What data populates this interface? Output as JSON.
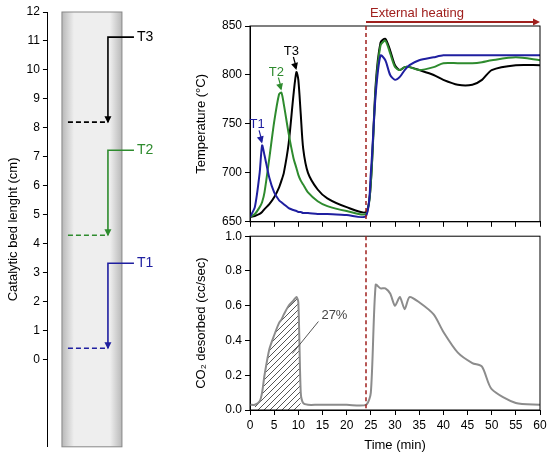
{
  "chart_data": [
    {
      "type": "reference_lines",
      "y_label": "Catalytic bed lenght (cm)",
      "ylim": [
        -3,
        12
      ],
      "yticks": [
        0,
        1,
        2,
        3,
        4,
        5,
        6,
        7,
        8,
        9,
        10,
        11,
        12
      ],
      "tick_labels": "y",
      "grid": false,
      "lines": [
        {
          "label": "T1",
          "value": 0.4,
          "color": "#1f1fa0"
        },
        {
          "label": "T2",
          "value": 4.3,
          "color": "#2e8b2e"
        },
        {
          "label": "T3",
          "value": 8.2,
          "color": "#000000"
        }
      ]
    },
    {
      "type": "line",
      "y_label": "Temperature (°C)",
      "x": [
        0,
        1,
        2,
        2.5,
        3,
        4,
        5,
        6,
        6.5,
        7,
        8,
        9,
        9.6,
        10,
        10.5,
        11,
        12,
        14,
        16,
        20,
        24,
        25,
        26,
        27,
        28,
        29,
        30,
        31,
        32,
        33,
        35,
        38,
        40,
        43,
        46,
        48,
        50,
        55,
        60
      ],
      "series": [
        {
          "name": "T1",
          "color": "#1f1fa0",
          "values": [
            655,
            665,
            700,
            728,
            718,
            695,
            680,
            672,
            670,
            668,
            664,
            662,
            661,
            660,
            660,
            659,
            659,
            658,
            658,
            657,
            656,
            700,
            780,
            820,
            815,
            800,
            795,
            798,
            805,
            810,
            815,
            818,
            820,
            820,
            820,
            820,
            820,
            820,
            820
          ]
        },
        {
          "name": "T2",
          "color": "#2e8b2e",
          "values": [
            655,
            658,
            665,
            670,
            680,
            715,
            752,
            780,
            782,
            770,
            740,
            715,
            705,
            698,
            692,
            688,
            680,
            671,
            666,
            661,
            658,
            690,
            785,
            830,
            835,
            822,
            808,
            805,
            808,
            808,
            805,
            808,
            812,
            812,
            812,
            813,
            815,
            818,
            815
          ]
        },
        {
          "name": "T3",
          "color": "#000000",
          "values": [
            655,
            656,
            658,
            660,
            663,
            668,
            675,
            685,
            692,
            700,
            730,
            780,
            803,
            795,
            760,
            725,
            700,
            683,
            674,
            665,
            660,
            690,
            790,
            833,
            837,
            825,
            810,
            805,
            808,
            808,
            805,
            800,
            795,
            790,
            790,
            795,
            805,
            810,
            810
          ]
        }
      ],
      "xlim": [
        0,
        60
      ],
      "xticks": [
        0,
        5,
        10,
        15,
        20,
        25,
        30,
        35,
        40,
        45,
        50,
        55,
        60
      ],
      "ylim": [
        650,
        850
      ],
      "yticks": [
        650,
        700,
        750,
        800,
        850
      ],
      "tick_labels": "y",
      "grid": false,
      "vline": 24,
      "vline_label": "External heating"
    },
    {
      "type": "line",
      "x_label": "Time (min)",
      "y_label": "CO₂ desorbed (cc/sec)",
      "x": [
        0,
        1,
        2,
        2.5,
        3,
        4,
        5,
        6,
        6.5,
        7,
        8,
        9,
        9.6,
        10,
        10.5,
        11,
        12,
        14,
        16,
        20,
        24,
        25,
        26,
        27,
        28,
        29,
        30,
        31,
        32,
        33,
        35,
        38,
        40,
        43,
        46,
        48,
        50,
        55,
        60
      ],
      "values": [
        0.03,
        0.03,
        0.05,
        0.1,
        0.2,
        0.35,
        0.43,
        0.5,
        0.52,
        0.55,
        0.6,
        0.63,
        0.65,
        0.62,
        0.1,
        0.04,
        0.03,
        0.03,
        0.03,
        0.03,
        0.03,
        0.1,
        0.72,
        0.7,
        0.7,
        0.67,
        0.6,
        0.65,
        0.58,
        0.65,
        0.62,
        0.55,
        0.45,
        0.33,
        0.27,
        0.25,
        0.12,
        0.04,
        0.03
      ],
      "color": "#8c8c8c",
      "xlim": [
        0,
        60
      ],
      "xticks": [
        0,
        5,
        10,
        15,
        20,
        25,
        30,
        35,
        40,
        45,
        50,
        55,
        60
      ],
      "ylim": [
        0,
        1
      ],
      "yticks": [
        {
          "value": 0,
          "label": "0.0"
        },
        {
          "value": 0.2,
          "label": "0.2"
        },
        {
          "value": 0.4,
          "label": "0.4"
        },
        {
          "value": 0.6,
          "label": "0.6"
        },
        {
          "value": 0.8,
          "label": "0.8"
        },
        {
          "value": 1,
          "label": "1.0"
        }
      ],
      "grid": false,
      "vline": 24,
      "shade_xlim": [
        1,
        10.5
      ],
      "shade_label": "27%"
    }
  ]
}
